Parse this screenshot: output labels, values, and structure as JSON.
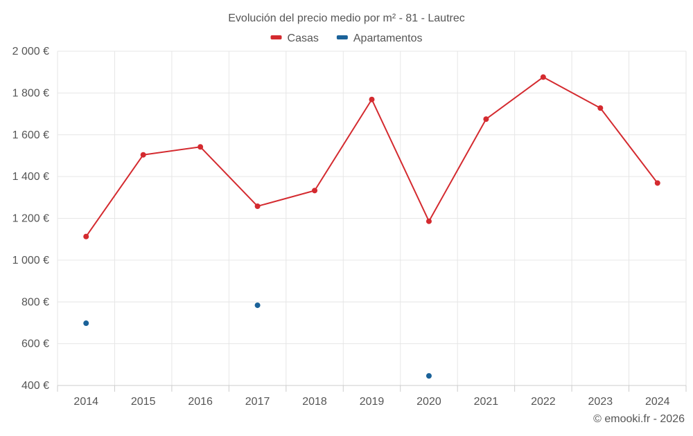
{
  "chart_data": {
    "type": "line",
    "title": "Evolución del precio medio por m² - 81 - Lautrec",
    "categories": [
      "2014",
      "2015",
      "2016",
      "2017",
      "2018",
      "2019",
      "2020",
      "2021",
      "2022",
      "2023",
      "2024"
    ],
    "series": [
      {
        "name": "Casas",
        "color": "#d42a2f",
        "style": "line-markers",
        "values": [
          1113,
          1504,
          1542,
          1258,
          1333,
          1769,
          1186,
          1675,
          1876,
          1728,
          1369
        ]
      },
      {
        "name": "Apartamentos",
        "color": "#1b6299",
        "style": "markers",
        "values": [
          698,
          null,
          null,
          784,
          null,
          null,
          446,
          null,
          null,
          null,
          null
        ]
      }
    ],
    "ylim": [
      400,
      2000
    ],
    "yticks": [
      400,
      600,
      800,
      1000,
      1200,
      1400,
      1600,
      1800,
      2000
    ],
    "ytick_labels": [
      "400 €",
      "600 €",
      "800 €",
      "1 000 €",
      "1 200 €",
      "1 400 €",
      "1 600 €",
      "1 800 €",
      "2 000 €"
    ],
    "xlabel": "",
    "ylabel": "",
    "grid": true,
    "legend_position": "top-center"
  },
  "credits": "© emooki.fr - 2026",
  "colors": {
    "text": "#555555",
    "grid": "#e6e6e6",
    "axis": "#cccccc"
  }
}
